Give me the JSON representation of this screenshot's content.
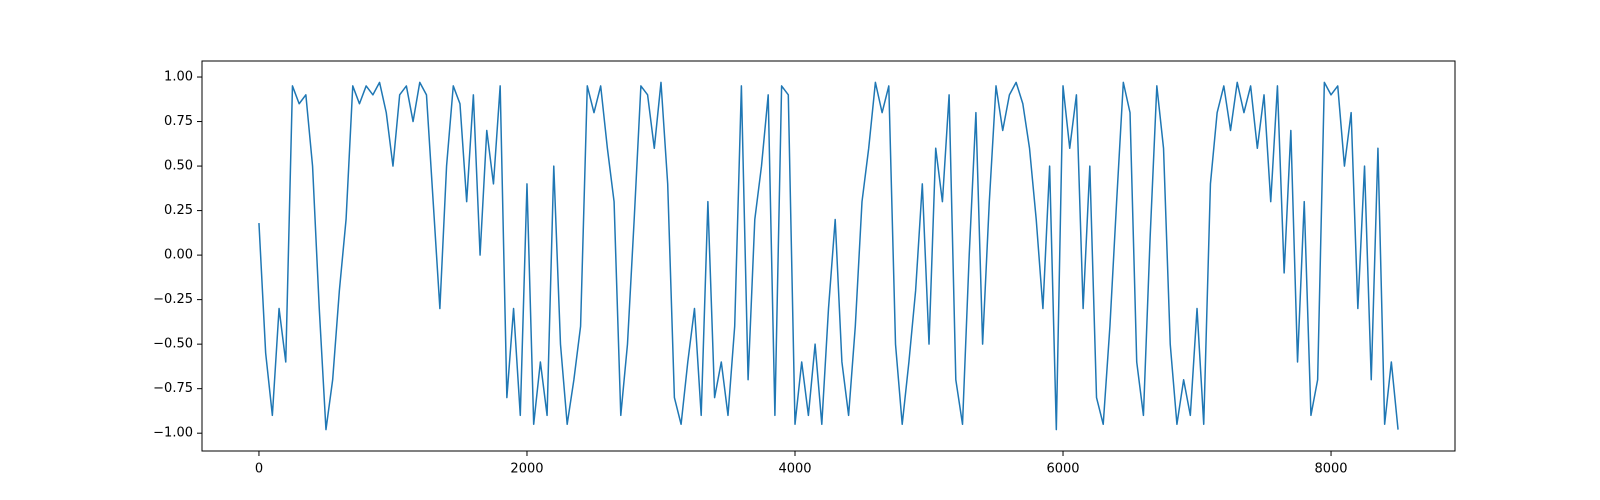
{
  "chart_data": {
    "type": "line",
    "color": "#1f77b4",
    "grid": false,
    "x": [
      0,
      50,
      100,
      150,
      200,
      250,
      300,
      350,
      400,
      450,
      500,
      550,
      600,
      650,
      700,
      750,
      800,
      850,
      900,
      950,
      1000,
      1050,
      1100,
      1150,
      1200,
      1250,
      1300,
      1350,
      1400,
      1450,
      1500,
      1550,
      1600,
      1650,
      1700,
      1750,
      1800,
      1850,
      1900,
      1950,
      2000,
      2050,
      2100,
      2150,
      2200,
      2250,
      2300,
      2350,
      2400,
      2450,
      2500,
      2550,
      2600,
      2650,
      2700,
      2750,
      2800,
      2850,
      2900,
      2950,
      3000,
      3050,
      3100,
      3150,
      3200,
      3250,
      3300,
      3350,
      3400,
      3450,
      3500,
      3550,
      3600,
      3650,
      3700,
      3750,
      3800,
      3850,
      3900,
      3950,
      4000,
      4050,
      4100,
      4150,
      4200,
      4250,
      4300,
      4350,
      4400,
      4450,
      4500,
      4550,
      4600,
      4650,
      4700,
      4750,
      4800,
      4850,
      4900,
      4950,
      5000,
      5050,
      5100,
      5150,
      5200,
      5250,
      5300,
      5350,
      5400,
      5450,
      5500,
      5550,
      5600,
      5650,
      5700,
      5750,
      5800,
      5850,
      5900,
      5950,
      6000,
      6050,
      6100,
      6150,
      6200,
      6250,
      6300,
      6350,
      6400,
      6450,
      6500,
      6550,
      6600,
      6650,
      6700,
      6750,
      6800,
      6850,
      6900,
      6950,
      7000,
      7050,
      7100,
      7150,
      7200,
      7250,
      7300,
      7350,
      7400,
      7450,
      7500,
      7550,
      7600,
      7650,
      7700,
      7750,
      7800,
      7850,
      7900,
      7950,
      8000,
      8050,
      8100,
      8150,
      8200,
      8250,
      8300,
      8350,
      8400,
      8450,
      8500
    ],
    "values": [
      0.18,
      -0.55,
      -0.9,
      -0.3,
      -0.6,
      0.95,
      0.85,
      0.9,
      0.5,
      -0.3,
      -0.98,
      -0.7,
      -0.2,
      0.2,
      0.95,
      0.85,
      0.95,
      0.9,
      0.97,
      0.8,
      0.5,
      0.9,
      0.95,
      0.75,
      0.97,
      0.9,
      0.3,
      -0.3,
      0.5,
      0.95,
      0.85,
      0.3,
      0.9,
      0.0,
      0.7,
      0.4,
      0.95,
      -0.8,
      -0.3,
      -0.9,
      0.4,
      -0.95,
      -0.6,
      -0.9,
      0.5,
      -0.5,
      -0.95,
      -0.7,
      -0.4,
      0.95,
      0.8,
      0.95,
      0.6,
      0.3,
      -0.9,
      -0.5,
      0.2,
      0.95,
      0.9,
      0.6,
      0.97,
      0.4,
      -0.8,
      -0.95,
      -0.6,
      -0.3,
      -0.9,
      0.3,
      -0.8,
      -0.6,
      -0.9,
      -0.4,
      0.95,
      -0.7,
      0.2,
      0.5,
      0.9,
      -0.9,
      0.95,
      0.9,
      -0.95,
      -0.6,
      -0.9,
      -0.5,
      -0.95,
      -0.3,
      0.2,
      -0.6,
      -0.9,
      -0.4,
      0.3,
      0.6,
      0.97,
      0.8,
      0.95,
      -0.5,
      -0.95,
      -0.6,
      -0.2,
      0.4,
      -0.5,
      0.6,
      0.3,
      0.9,
      -0.7,
      -0.95,
      0.0,
      0.8,
      -0.5,
      0.3,
      0.95,
      0.7,
      0.9,
      0.97,
      0.85,
      0.6,
      0.2,
      -0.3,
      0.5,
      -0.98,
      0.95,
      0.6,
      0.9,
      -0.3,
      0.5,
      -0.8,
      -0.95,
      -0.4,
      0.3,
      0.97,
      0.8,
      -0.6,
      -0.9,
      0.1,
      0.95,
      0.6,
      -0.5,
      -0.95,
      -0.7,
      -0.9,
      -0.3,
      -0.95,
      0.4,
      0.8,
      0.95,
      0.7,
      0.97,
      0.8,
      0.95,
      0.6,
      0.9,
      0.3,
      0.95,
      -0.1,
      0.7,
      -0.6,
      0.3,
      -0.9,
      -0.7,
      0.97,
      0.9,
      0.95,
      0.5,
      0.8,
      -0.3,
      0.5,
      -0.7,
      0.6,
      -0.95,
      -0.6,
      -0.98
    ],
    "xlim": [
      -425,
      8925
    ],
    "xticks": [
      0,
      2000,
      4000,
      6000,
      8000
    ],
    "ylim": [
      -1.1,
      1.09
    ],
    "yticks": [
      {
        "value": -1,
        "label": "−1.00"
      },
      {
        "value": -0.75,
        "label": "−0.75"
      },
      {
        "value": -0.5,
        "label": "−0.50"
      },
      {
        "value": -0.25,
        "label": "−0.25"
      },
      {
        "value": 0,
        "label": "0.00"
      },
      {
        "value": 0.25,
        "label": "0.25"
      },
      {
        "value": 0.5,
        "label": "0.50"
      },
      {
        "value": 0.75,
        "label": "0.75"
      },
      {
        "value": 1,
        "label": "1.00"
      }
    ]
  }
}
